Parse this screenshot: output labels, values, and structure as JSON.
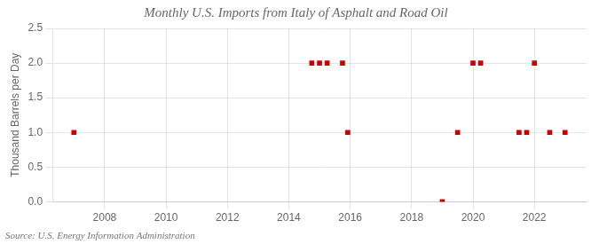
{
  "chart_data": {
    "type": "scatter",
    "title": "Monthly U.S. Imports from Italy of Asphalt and Road Oil",
    "ylabel": "Thousand Barrels per Day",
    "annotation": "Source: U.S. Energy Information Administration",
    "x": [
      2007.0,
      2014.75,
      2015.0,
      2015.25,
      2015.75,
      2015.92,
      2019.0,
      2019.5,
      2020.0,
      2020.25,
      2021.5,
      2021.75,
      2022.0,
      2022.5,
      2023.0
    ],
    "values": [
      1.0,
      2.0,
      2.0,
      2.0,
      2.0,
      1.0,
      0.0,
      1.0,
      2.0,
      2.0,
      1.0,
      1.0,
      2.0,
      1.0,
      1.0
    ],
    "color": "#cc0000",
    "marker": "square",
    "xlim": [
      2006.3,
      2023.7
    ],
    "xticks": [
      2008,
      2010,
      2012,
      2014,
      2016,
      2018,
      2020,
      2022
    ],
    "ylim": [
      0.0,
      2.5
    ],
    "yticks": [
      {
        "value": 0,
        "label": "0.0"
      },
      0.5,
      {
        "value": 1,
        "label": "1.0"
      },
      1.5,
      {
        "value": 2,
        "label": "2.0"
      },
      2.5
    ],
    "grid": true
  }
}
